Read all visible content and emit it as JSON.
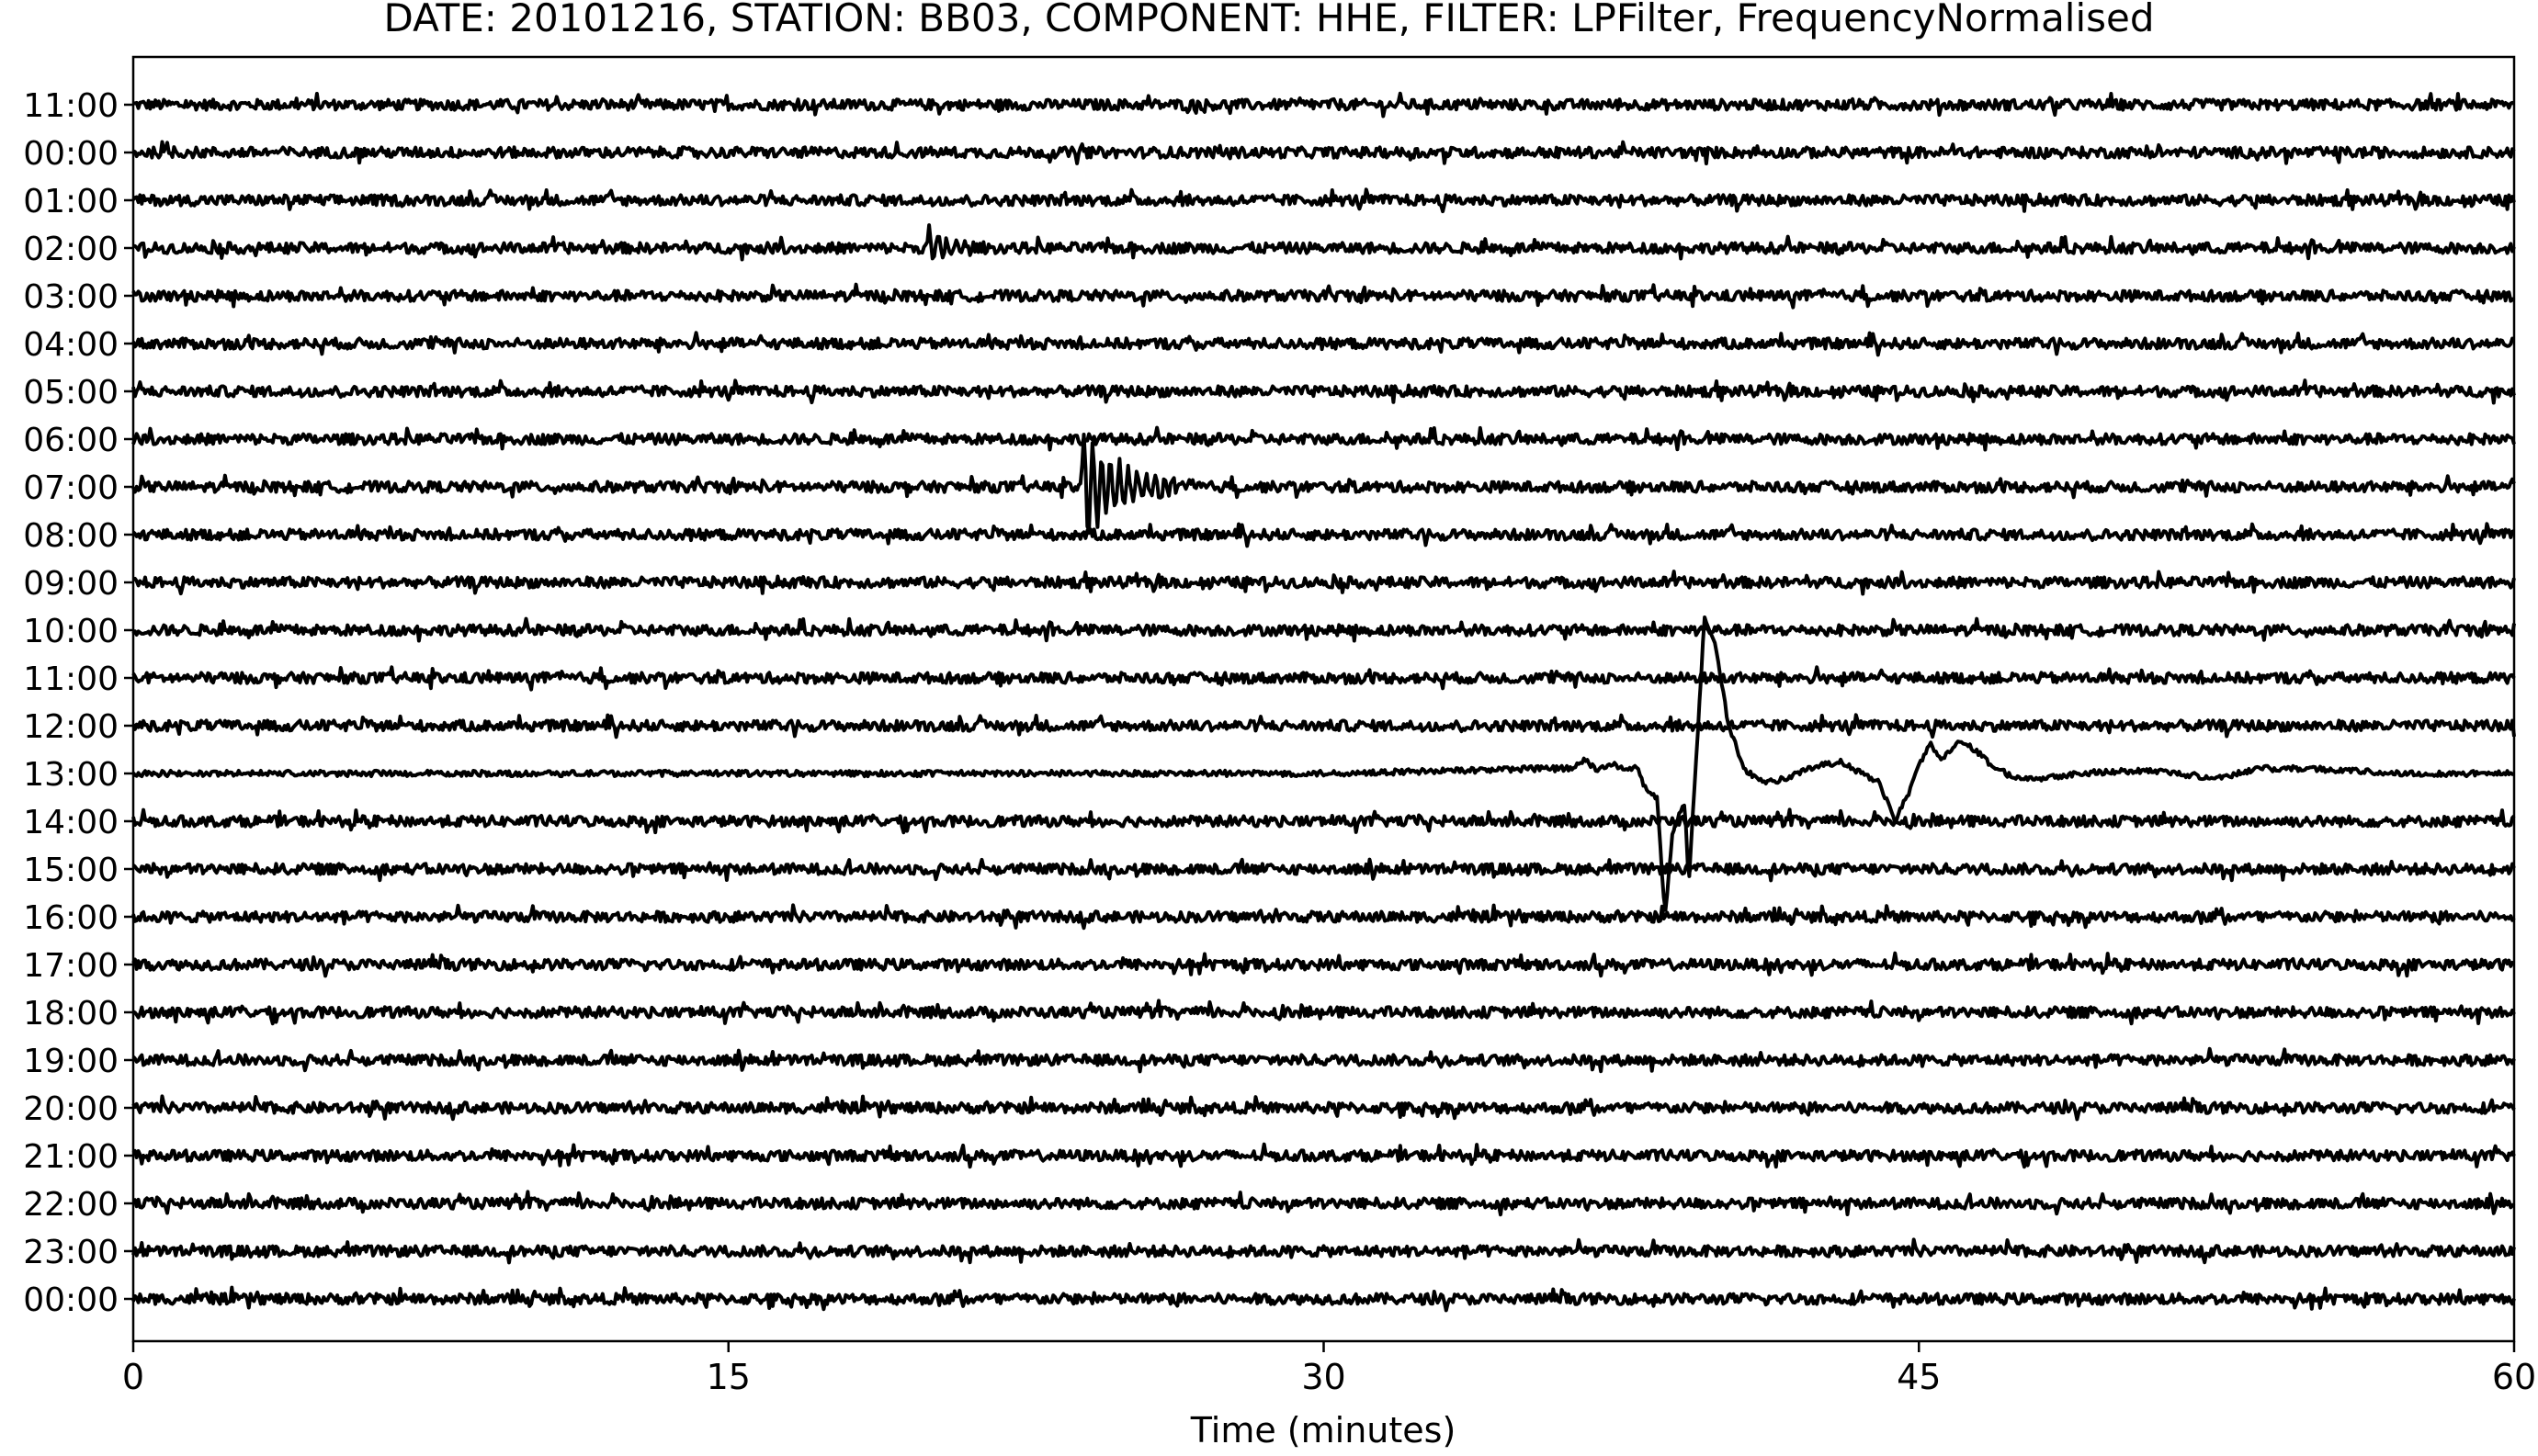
{
  "chart_data": {
    "type": "line",
    "title": "DATE: 20101216, STATION: BB03, COMPONENT: HHE, FILTER: LPFilter, FrequencyNormalised",
    "xlabel": "Time (minutes)",
    "ylabel": "",
    "xlim": [
      0,
      60
    ],
    "xticks": [
      "0",
      "15",
      "30",
      "45",
      "60"
    ],
    "xtick_values": [
      0,
      15,
      30,
      45,
      60
    ],
    "grid": false,
    "line_color": "#000000",
    "rows": [
      {
        "label": "11:00",
        "amplitude": 0.11
      },
      {
        "label": "00:00",
        "amplitude": 0.11
      },
      {
        "label": "01:00",
        "amplitude": 0.11
      },
      {
        "label": "02:00",
        "amplitude": 0.11,
        "events": [
          {
            "t": 20.0,
            "peak": 0.45,
            "duration": 1.5
          }
        ]
      },
      {
        "label": "03:00",
        "amplitude": 0.11
      },
      {
        "label": "04:00",
        "amplitude": 0.11
      },
      {
        "label": "05:00",
        "amplitude": 0.11
      },
      {
        "label": "06:00",
        "amplitude": 0.11
      },
      {
        "label": "07:00",
        "amplitude": 0.11,
        "events": [
          {
            "t": 23.9,
            "peak": 1.15,
            "duration": 3.0
          }
        ]
      },
      {
        "label": "08:00",
        "amplitude": 0.11
      },
      {
        "label": "09:00",
        "amplitude": 0.11
      },
      {
        "label": "10:00",
        "amplitude": 0.11
      },
      {
        "label": "11:00",
        "amplitude": 0.11
      },
      {
        "label": "12:00",
        "amplitude": 0.11
      },
      {
        "label": "13:00",
        "amplitude": 0.06,
        "waveform": [
          [
            0,
            0
          ],
          [
            30,
            0
          ],
          [
            33,
            0.05
          ],
          [
            35,
            0.1
          ],
          [
            36.3,
            0.1
          ],
          [
            36.6,
            0.3
          ],
          [
            36.9,
            0.05
          ],
          [
            37.3,
            0.2
          ],
          [
            37.6,
            0.05
          ],
          [
            37.9,
            0.15
          ],
          [
            38.1,
            -0.3
          ],
          [
            38.4,
            -0.5
          ],
          [
            38.6,
            -3.0
          ],
          [
            38.8,
            -1.2
          ],
          [
            39.1,
            -0.6
          ],
          [
            39.2,
            -2.3
          ],
          [
            39.35,
            -0.2
          ],
          [
            39.6,
            3.3
          ],
          [
            39.9,
            2.6
          ],
          [
            40.2,
            1.0
          ],
          [
            40.6,
            0.1
          ],
          [
            41.1,
            -0.2
          ],
          [
            41.7,
            -0.1
          ],
          [
            42.2,
            0.1
          ],
          [
            43.0,
            0.25
          ],
          [
            44.0,
            -0.2
          ],
          [
            44.4,
            -1.0
          ],
          [
            44.8,
            -0.3
          ],
          [
            45.0,
            0.2
          ],
          [
            45.3,
            0.6
          ],
          [
            45.6,
            0.3
          ],
          [
            46.0,
            0.7
          ],
          [
            46.4,
            0.5
          ],
          [
            46.8,
            0.2
          ],
          [
            47.3,
            -0.05
          ],
          [
            48.0,
            -0.1
          ],
          [
            49.0,
            0
          ],
          [
            50.0,
            0.05
          ],
          [
            51.0,
            0.05
          ],
          [
            52.5,
            -0.1
          ],
          [
            53.5,
            0.1
          ],
          [
            55.0,
            0.1
          ],
          [
            57.0,
            0
          ],
          [
            60,
            0
          ]
        ]
      },
      {
        "label": "14:00",
        "amplitude": 0.11
      },
      {
        "label": "15:00",
        "amplitude": 0.11
      },
      {
        "label": "16:00",
        "amplitude": 0.11
      },
      {
        "label": "17:00",
        "amplitude": 0.11
      },
      {
        "label": "18:00",
        "amplitude": 0.11
      },
      {
        "label": "19:00",
        "amplitude": 0.11
      },
      {
        "label": "20:00",
        "amplitude": 0.11
      },
      {
        "label": "21:00",
        "amplitude": 0.11
      },
      {
        "label": "22:00",
        "amplitude": 0.11
      },
      {
        "label": "23:00",
        "amplitude": 0.11
      },
      {
        "label": "00:00",
        "amplitude": 0.11
      }
    ]
  }
}
